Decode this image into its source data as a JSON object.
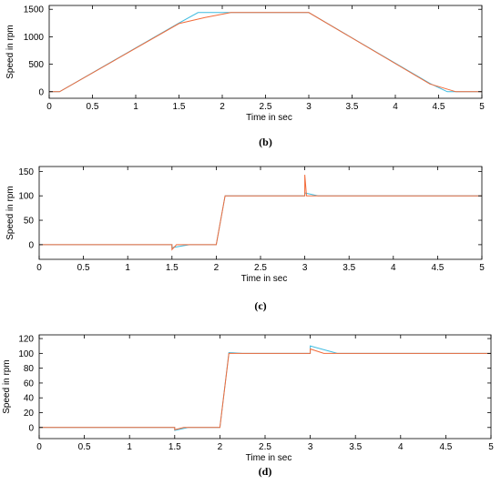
{
  "colors": {
    "series_a": "#3DBBE0",
    "series_b": "#F26B3A",
    "frame": "#000000"
  },
  "chart_data": [
    {
      "type": "line",
      "caption": "(b)",
      "xlabel": "Time in sec",
      "ylabel": "Speed in rpm",
      "xlim": [
        0,
        5
      ],
      "ylim": [
        -120,
        1570
      ],
      "xticks": [
        0,
        0.5,
        1,
        1.5,
        2,
        2.5,
        3,
        3.5,
        4,
        4.5,
        5
      ],
      "yticks": [
        0,
        500,
        1000,
        1500
      ],
      "series": [
        {
          "color": "#3DBBE0",
          "x": [
            0,
            0.12,
            1.5,
            1.72,
            3.0,
            4.4,
            4.6,
            5.0
          ],
          "y": [
            0,
            0,
            1250,
            1440,
            1440,
            150,
            0,
            0
          ]
        },
        {
          "color": "#F26B3A",
          "x": [
            0,
            0.12,
            1.5,
            1.8,
            2.1,
            3.0,
            4.4,
            4.7,
            5.0
          ],
          "y": [
            0,
            0,
            1240,
            1350,
            1440,
            1440,
            140,
            0,
            0
          ]
        }
      ]
    },
    {
      "type": "line",
      "caption": "(c)",
      "xlabel": "Time in sec",
      "ylabel": "Speed in rpm",
      "xlim": [
        0,
        5
      ],
      "ylim": [
        -30,
        160
      ],
      "xticks": [
        0,
        0.5,
        1,
        1.5,
        2,
        2.5,
        3,
        3.5,
        4,
        4.5,
        5
      ],
      "yticks": [
        0,
        50,
        100,
        150
      ],
      "series": [
        {
          "color": "#3DBBE0",
          "x": [
            0,
            1.5,
            1.5,
            1.7,
            2.0,
            2.1,
            3.0,
            3.0,
            3.15,
            5.0
          ],
          "y": [
            0,
            0,
            -6,
            0,
            0,
            100,
            100,
            106,
            100,
            100
          ]
        },
        {
          "color": "#F26B3A",
          "x": [
            0,
            1.5,
            1.5,
            1.55,
            2.0,
            2.1,
            3.0,
            3.0,
            3.02,
            5.0
          ],
          "y": [
            0,
            0,
            -10,
            0,
            0,
            100,
            100,
            143,
            100,
            100
          ]
        }
      ]
    },
    {
      "type": "line",
      "caption": "(d)",
      "xlabel": "Time in sec",
      "ylabel": "Speed in rpm",
      "xlim": [
        0,
        5
      ],
      "ylim": [
        -15,
        125
      ],
      "xticks": [
        0,
        0.5,
        1,
        1.5,
        2,
        2.5,
        3,
        3.5,
        4,
        4.5,
        5
      ],
      "yticks": [
        0,
        20,
        40,
        60,
        80,
        100,
        120
      ],
      "series": [
        {
          "color": "#3DBBE0",
          "x": [
            0,
            1.5,
            1.5,
            1.65,
            2.0,
            2.1,
            2.25,
            3.0,
            3.0,
            3.3,
            5.0
          ],
          "y": [
            0,
            0,
            -4,
            0,
            0,
            101,
            100,
            100,
            110,
            100,
            100
          ]
        },
        {
          "color": "#F26B3A",
          "x": [
            0,
            1.5,
            1.5,
            1.6,
            2.0,
            2.1,
            3.0,
            3.0,
            3.15,
            5.0
          ],
          "y": [
            0,
            0,
            -3,
            0,
            0,
            100,
            100,
            106,
            100,
            100
          ]
        }
      ]
    }
  ]
}
